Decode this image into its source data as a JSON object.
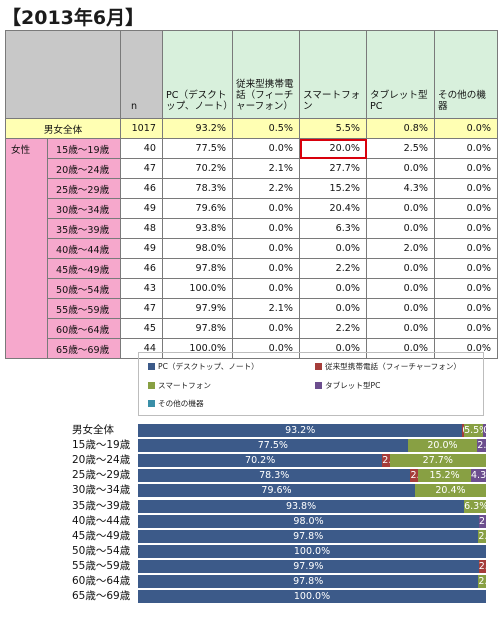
{
  "title": "【2013年6月】",
  "table": {
    "headers": [
      "n",
      "PC（デスクトップ、ノート）",
      "従来型携帯電話（フィーチャーフォン）",
      "スマートフォン",
      "タブレット型PC",
      "その他の機器"
    ],
    "total_label": "男女全体",
    "sex_label": "女性",
    "rows": [
      {
        "label": "男女全体",
        "n": "1017",
        "values": [
          "93.2%",
          "0.5%",
          "5.5%",
          "0.8%",
          "0.0%"
        ]
      },
      {
        "label": "15歳～19歳",
        "n": "40",
        "values": [
          "77.5%",
          "0.0%",
          "20.0%",
          "2.5%",
          "0.0%"
        ]
      },
      {
        "label": "20歳～24歳",
        "n": "47",
        "values": [
          "70.2%",
          "2.1%",
          "27.7%",
          "0.0%",
          "0.0%"
        ]
      },
      {
        "label": "25歳～29歳",
        "n": "46",
        "values": [
          "78.3%",
          "2.2%",
          "15.2%",
          "4.3%",
          "0.0%"
        ]
      },
      {
        "label": "30歳～34歳",
        "n": "49",
        "values": [
          "79.6%",
          "0.0%",
          "20.4%",
          "0.0%",
          "0.0%"
        ]
      },
      {
        "label": "35歳～39歳",
        "n": "48",
        "values": [
          "93.8%",
          "0.0%",
          "6.3%",
          "0.0%",
          "0.0%"
        ]
      },
      {
        "label": "40歳～44歳",
        "n": "49",
        "values": [
          "98.0%",
          "0.0%",
          "0.0%",
          "2.0%",
          "0.0%"
        ]
      },
      {
        "label": "45歳～49歳",
        "n": "46",
        "values": [
          "97.8%",
          "0.0%",
          "2.2%",
          "0.0%",
          "0.0%"
        ]
      },
      {
        "label": "50歳～54歳",
        "n": "43",
        "values": [
          "100.0%",
          "0.0%",
          "0.0%",
          "0.0%",
          "0.0%"
        ]
      },
      {
        "label": "55歳～59歳",
        "n": "47",
        "values": [
          "97.9%",
          "2.1%",
          "0.0%",
          "0.0%",
          "0.0%"
        ]
      },
      {
        "label": "60歳～64歳",
        "n": "45",
        "values": [
          "97.8%",
          "0.0%",
          "2.2%",
          "0.0%",
          "0.0%"
        ]
      },
      {
        "label": "65歳～69歳",
        "n": "44",
        "values": [
          "100.0%",
          "0.0%",
          "0.0%",
          "0.0%",
          "0.0%"
        ]
      }
    ]
  },
  "chart_data": {
    "type": "bar",
    "stacked": true,
    "orientation": "horizontal",
    "legend_position": "top",
    "categories": [
      "男女全体",
      "15歳～19歳",
      "20歳～24歳",
      "25歳～29歳",
      "30歳～34歳",
      "35歳～39歳",
      "40歳～44歳",
      "45歳～49歳",
      "50歳～54歳",
      "55歳～59歳",
      "60歳～64歳",
      "65歳～69歳"
    ],
    "series": [
      {
        "name": "PC（デスクトップ、ノート）",
        "color": "#3c5a89",
        "values": [
          93.2,
          77.5,
          70.2,
          78.3,
          79.6,
          93.8,
          98.0,
          97.8,
          100.0,
          97.9,
          97.8,
          100.0
        ]
      },
      {
        "name": "従来型携帯電話（フィーチャーフォン）",
        "color": "#a53d3a",
        "values": [
          0.5,
          0.0,
          2.1,
          2.2,
          0.0,
          0.0,
          0.0,
          0.0,
          0.0,
          2.1,
          0.0,
          0.0
        ]
      },
      {
        "name": "スマートフォン",
        "color": "#88a043",
        "values": [
          5.5,
          20.0,
          27.7,
          15.2,
          20.4,
          6.3,
          0.0,
          2.2,
          0.0,
          0.0,
          2.2,
          0.0
        ]
      },
      {
        "name": "タブレット型PC",
        "color": "#6c4e8e",
        "values": [
          0.8,
          2.5,
          0.0,
          4.3,
          0.0,
          0.0,
          2.0,
          0.0,
          0.0,
          0.0,
          0.0,
          0.0
        ]
      },
      {
        "name": "その他の機器",
        "color": "#3a8fa8",
        "values": [
          0.0,
          0.0,
          0.0,
          0.0,
          0.0,
          0.0,
          0.0,
          0.0,
          0.0,
          0.0,
          0.0,
          0.0
        ]
      }
    ],
    "data_labels": [
      [
        "93.2%",
        "0.5%",
        "5.5%",
        "0.8%",
        ""
      ],
      [
        "77.5%",
        "",
        "20.0%",
        "2.5%",
        ""
      ],
      [
        "70.2%",
        "2.1%",
        "27.7%",
        "",
        ""
      ],
      [
        "78.3%",
        "2.2%",
        "15.2%",
        "4.3%",
        ""
      ],
      [
        "79.6%",
        "",
        "20.4%",
        "",
        ""
      ],
      [
        "93.8%",
        "",
        "6.3%",
        "",
        ""
      ],
      [
        "98.0%",
        "",
        "",
        "2.0%",
        ""
      ],
      [
        "97.8%",
        "",
        "2.2%",
        "",
        ""
      ],
      [
        "100.0%",
        "",
        "",
        "",
        ""
      ],
      [
        "97.9%",
        "2.1%",
        "",
        "",
        ""
      ],
      [
        "97.8%",
        "",
        "2.2%",
        "",
        ""
      ],
      [
        "100.0%",
        "",
        "",
        "",
        ""
      ]
    ],
    "xlim": [
      0,
      100
    ]
  }
}
